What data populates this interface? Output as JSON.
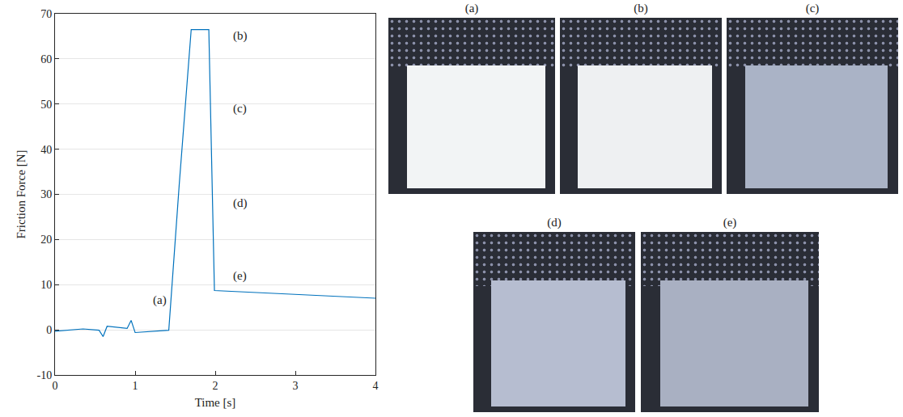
{
  "chart_data": {
    "type": "line",
    "x": [
      0,
      0.35,
      0.55,
      0.6,
      0.65,
      0.9,
      0.95,
      1.0,
      1.42,
      1.55,
      1.7,
      1.92,
      1.99,
      4.0
    ],
    "values": [
      -0.3,
      0.2,
      -0.1,
      -1.5,
      0.8,
      0.3,
      2.1,
      -0.6,
      -0.1,
      32,
      66.5,
      66.5,
      8.7,
      7.0
    ],
    "color": "#0072bd",
    "x_label": "Time [s]",
    "y_label": "Friction Force [N]",
    "xlim": [
      0,
      4
    ],
    "xticks": [
      0,
      1,
      2,
      3,
      4
    ],
    "ylim": [
      -10,
      70
    ],
    "yticks": [
      -10,
      0,
      10,
      20,
      30,
      40,
      50,
      60,
      70
    ],
    "grid": "y",
    "annotations": [
      {
        "text": "(a)",
        "x": 1.2,
        "y": 6.5
      },
      {
        "text": "(b)",
        "x": 2.2,
        "y": 65
      },
      {
        "text": "(c)",
        "x": 2.2,
        "y": 49
      },
      {
        "text": "(d)",
        "x": 2.2,
        "y": 28
      },
      {
        "text": "(e)",
        "x": 2.2,
        "y": 12
      }
    ]
  },
  "photos": [
    {
      "label": "(a)"
    },
    {
      "label": "(b)"
    },
    {
      "label": "(c)"
    },
    {
      "label": "(d)"
    },
    {
      "label": "(e)"
    }
  ]
}
